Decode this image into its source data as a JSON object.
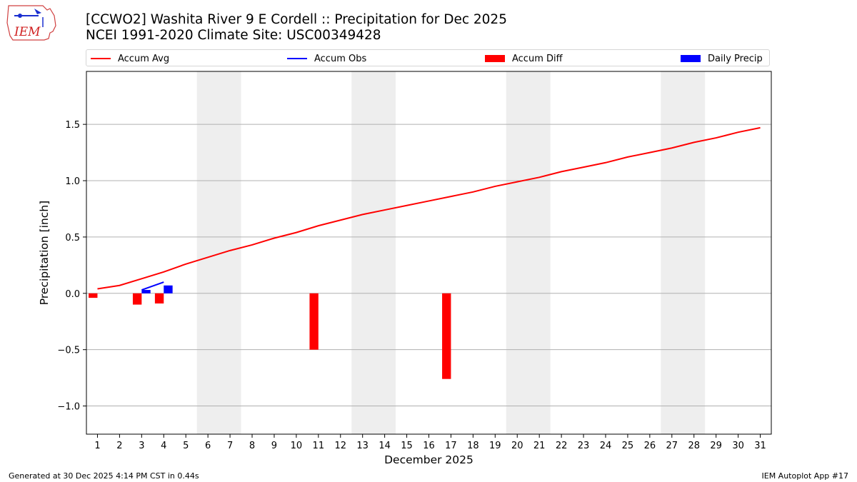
{
  "header": {
    "logo_text": "IEM",
    "title_line1": "[CCWO2] Washita River 9 E Cordell :: Precipitation for Dec 2025",
    "title_line2": "NCEI 1991-2020 Climate Site: USC00349428"
  },
  "legend": [
    {
      "label": "Accum Avg",
      "kind": "line",
      "color": "#ff0000"
    },
    {
      "label": "Accum Obs",
      "kind": "line",
      "color": "#0000ff"
    },
    {
      "label": "Accum Diff",
      "kind": "box",
      "color": "#ff0000"
    },
    {
      "label": "Daily Precip",
      "kind": "box",
      "color": "#0000ff"
    }
  ],
  "footer": {
    "left": "Generated at 30 Dec 2025 4:14 PM CST in 0.44s",
    "right": "IEM Autoplot App #17"
  },
  "chart_data": {
    "type": "bar",
    "title": "[CCWO2] Washita River 9 E Cordell :: Precipitation for Dec 2025",
    "subtitle": "NCEI 1991-2020 Climate Site: USC00349428",
    "xlabel": "December 2025",
    "ylabel": "Precipitation [inch]",
    "xlim": [
      0.5,
      31.5
    ],
    "ylim": [
      -1.25,
      1.97
    ],
    "x_ticks": [
      1,
      2,
      3,
      4,
      5,
      6,
      7,
      8,
      9,
      10,
      11,
      12,
      13,
      14,
      15,
      16,
      17,
      18,
      19,
      20,
      21,
      22,
      23,
      24,
      25,
      26,
      27,
      28,
      29,
      30,
      31
    ],
    "y_ticks": [
      -1.0,
      -0.5,
      0.0,
      0.5,
      1.0,
      1.5
    ],
    "y_tick_labels": [
      "−1.0",
      "−0.5",
      "0.0",
      "0.5",
      "1.0",
      "1.5"
    ],
    "grid": "horizontal",
    "legend_position": "top",
    "weekend_bands": [
      [
        5.5,
        7.5
      ],
      [
        12.5,
        14.5
      ],
      [
        19.5,
        21.5
      ],
      [
        26.5,
        28.5
      ]
    ],
    "series": [
      {
        "name": "Accum Avg",
        "type": "line",
        "color": "#ff0000",
        "x": [
          1,
          2,
          3,
          4,
          5,
          6,
          7,
          8,
          9,
          10,
          11,
          12,
          13,
          14,
          15,
          16,
          17,
          18,
          19,
          20,
          21,
          22,
          23,
          24,
          25,
          26,
          27,
          28,
          29,
          30,
          31
        ],
        "values": [
          0.04,
          0.07,
          0.13,
          0.19,
          0.26,
          0.32,
          0.38,
          0.43,
          0.49,
          0.54,
          0.6,
          0.65,
          0.7,
          0.74,
          0.78,
          0.82,
          0.86,
          0.9,
          0.95,
          0.99,
          1.03,
          1.08,
          1.12,
          1.16,
          1.21,
          1.25,
          1.29,
          1.34,
          1.38,
          1.43,
          1.47
        ]
      },
      {
        "name": "Accum Obs",
        "type": "line",
        "color": "#0000ff",
        "x": [
          3,
          4
        ],
        "values": [
          0.03,
          0.1
        ]
      },
      {
        "name": "Accum Diff",
        "type": "bar",
        "color": "#ff0000",
        "x": [
          1,
          3,
          4,
          11,
          17
        ],
        "values": [
          -0.04,
          -0.1,
          -0.09,
          -0.5,
          -0.76
        ]
      },
      {
        "name": "Daily Precip",
        "type": "bar",
        "color": "#0000ff",
        "x": [
          3,
          4
        ],
        "values": [
          0.03,
          0.07
        ]
      }
    ]
  }
}
